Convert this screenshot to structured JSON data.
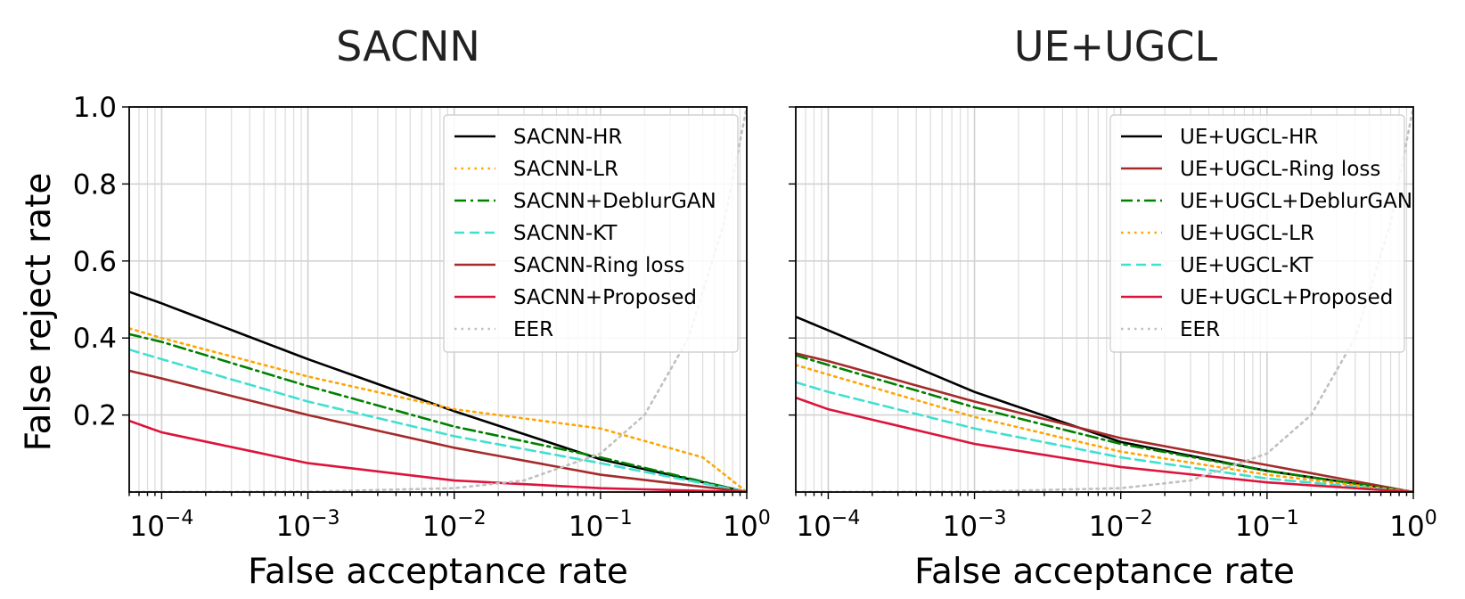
{
  "chart_data": [
    {
      "type": "line",
      "title": "SACNN",
      "xlabel": "False acceptance rate",
      "ylabel": "False reject rate",
      "xscale": "log",
      "xlim": [
        6e-05,
        1
      ],
      "ylim": [
        0,
        1.0
      ],
      "grid": true,
      "legend_position": "top-right",
      "x_ticks": [
        {
          "value": 0.0001,
          "base": "10",
          "exp": "−4"
        },
        {
          "value": 0.001,
          "base": "10",
          "exp": "−3"
        },
        {
          "value": 0.01,
          "base": "10",
          "exp": "−2"
        },
        {
          "value": 0.1,
          "base": "10",
          "exp": "−1"
        },
        {
          "value": 1,
          "base": "10",
          "exp": "0"
        }
      ],
      "y_ticks": [
        {
          "value": 0.2,
          "label": "0.2"
        },
        {
          "value": 0.4,
          "label": "0.4"
        },
        {
          "value": 0.6,
          "label": "0.6"
        },
        {
          "value": 0.8,
          "label": "0.8"
        },
        {
          "value": 1.0,
          "label": "1.0"
        }
      ],
      "series": [
        {
          "name": "SACNN-HR",
          "color": "#000000",
          "dash": "solid",
          "x": [
            6e-05,
            0.0001,
            0.001,
            0.01,
            0.1,
            1
          ],
          "y": [
            0.52,
            0.49,
            0.345,
            0.21,
            0.085,
            0.0
          ]
        },
        {
          "name": "SACNN-LR",
          "color": "#ffa500",
          "dash": "dotted",
          "x": [
            6e-05,
            0.0001,
            0.001,
            0.01,
            0.1,
            0.5,
            1
          ],
          "y": [
            0.425,
            0.4,
            0.3,
            0.215,
            0.165,
            0.09,
            0.0
          ]
        },
        {
          "name": "SACNN+DeblurGAN",
          "color": "#008000",
          "dash": "dashdot",
          "x": [
            6e-05,
            0.0001,
            0.001,
            0.01,
            0.1,
            1
          ],
          "y": [
            0.41,
            0.39,
            0.275,
            0.17,
            0.09,
            0.0
          ]
        },
        {
          "name": "SACNN-KT",
          "color": "#40e0d0",
          "dash": "dashed",
          "x": [
            6e-05,
            0.0001,
            0.001,
            0.01,
            0.1,
            1
          ],
          "y": [
            0.37,
            0.345,
            0.235,
            0.145,
            0.075,
            0.0
          ]
        },
        {
          "name": "SACNN-Ring loss",
          "color": "#a52a2a",
          "dash": "solid",
          "x": [
            6e-05,
            0.0001,
            0.001,
            0.01,
            0.1,
            1
          ],
          "y": [
            0.315,
            0.295,
            0.2,
            0.115,
            0.045,
            0.0
          ]
        },
        {
          "name": "SACNN+Proposed",
          "color": "#dc143c",
          "dash": "solid",
          "x": [
            6e-05,
            0.0001,
            0.001,
            0.01,
            0.1,
            1
          ],
          "y": [
            0.185,
            0.155,
            0.075,
            0.03,
            0.01,
            0.0
          ]
        },
        {
          "name": "EER",
          "color": "#c0c0c0",
          "dash": "dotted",
          "x": [
            6e-05,
            0.001,
            0.01,
            0.03,
            0.1,
            0.2,
            0.4,
            0.7,
            1
          ],
          "y": [
            6e-05,
            0.001,
            0.01,
            0.03,
            0.1,
            0.2,
            0.4,
            0.7,
            1.0
          ]
        }
      ]
    },
    {
      "type": "line",
      "title": "UE+UGCL",
      "xlabel": "False acceptance rate",
      "ylabel": "",
      "xscale": "log",
      "xlim": [
        6e-05,
        1
      ],
      "ylim": [
        0,
        1.0
      ],
      "grid": true,
      "legend_position": "top-right",
      "x_ticks": [
        {
          "value": 0.0001,
          "base": "10",
          "exp": "−4"
        },
        {
          "value": 0.001,
          "base": "10",
          "exp": "−3"
        },
        {
          "value": 0.01,
          "base": "10",
          "exp": "−2"
        },
        {
          "value": 0.1,
          "base": "10",
          "exp": "−1"
        },
        {
          "value": 1,
          "base": "10",
          "exp": "0"
        }
      ],
      "y_ticks": [],
      "series": [
        {
          "name": "UE+UGCL-HR",
          "color": "#000000",
          "dash": "solid",
          "x": [
            6e-05,
            0.0001,
            0.001,
            0.01,
            0.1,
            1
          ],
          "y": [
            0.455,
            0.42,
            0.26,
            0.13,
            0.055,
            0.0
          ]
        },
        {
          "name": "UE+UGCL-Ring loss",
          "color": "#a52a2a",
          "dash": "solid",
          "x": [
            6e-05,
            0.0001,
            0.001,
            0.01,
            0.1,
            1
          ],
          "y": [
            0.36,
            0.34,
            0.235,
            0.14,
            0.07,
            0.0
          ]
        },
        {
          "name": "UE+UGCL+DeblurGAN",
          "color": "#008000",
          "dash": "dashdot",
          "x": [
            6e-05,
            0.0001,
            0.001,
            0.01,
            0.1,
            1
          ],
          "y": [
            0.355,
            0.33,
            0.22,
            0.125,
            0.055,
            0.0
          ]
        },
        {
          "name": "UE+UGCL-LR",
          "color": "#ffa500",
          "dash": "dotted",
          "x": [
            6e-05,
            0.0001,
            0.001,
            0.01,
            0.1,
            1
          ],
          "y": [
            0.33,
            0.305,
            0.195,
            0.105,
            0.045,
            0.0
          ]
        },
        {
          "name": "UE+UGCL-KT",
          "color": "#40e0d0",
          "dash": "dashed",
          "x": [
            6e-05,
            0.0001,
            0.001,
            0.01,
            0.1,
            1
          ],
          "y": [
            0.285,
            0.26,
            0.165,
            0.09,
            0.035,
            0.0
          ]
        },
        {
          "name": "UE+UGCL+Proposed",
          "color": "#dc143c",
          "dash": "solid",
          "x": [
            6e-05,
            0.0001,
            0.001,
            0.01,
            0.1,
            1
          ],
          "y": [
            0.245,
            0.215,
            0.125,
            0.065,
            0.025,
            0.0
          ]
        },
        {
          "name": "EER",
          "color": "#c0c0c0",
          "dash": "dotted",
          "x": [
            6e-05,
            0.001,
            0.01,
            0.03,
            0.1,
            0.2,
            0.4,
            0.7,
            1
          ],
          "y": [
            6e-05,
            0.001,
            0.01,
            0.03,
            0.1,
            0.2,
            0.4,
            0.7,
            1.0
          ]
        }
      ]
    }
  ]
}
